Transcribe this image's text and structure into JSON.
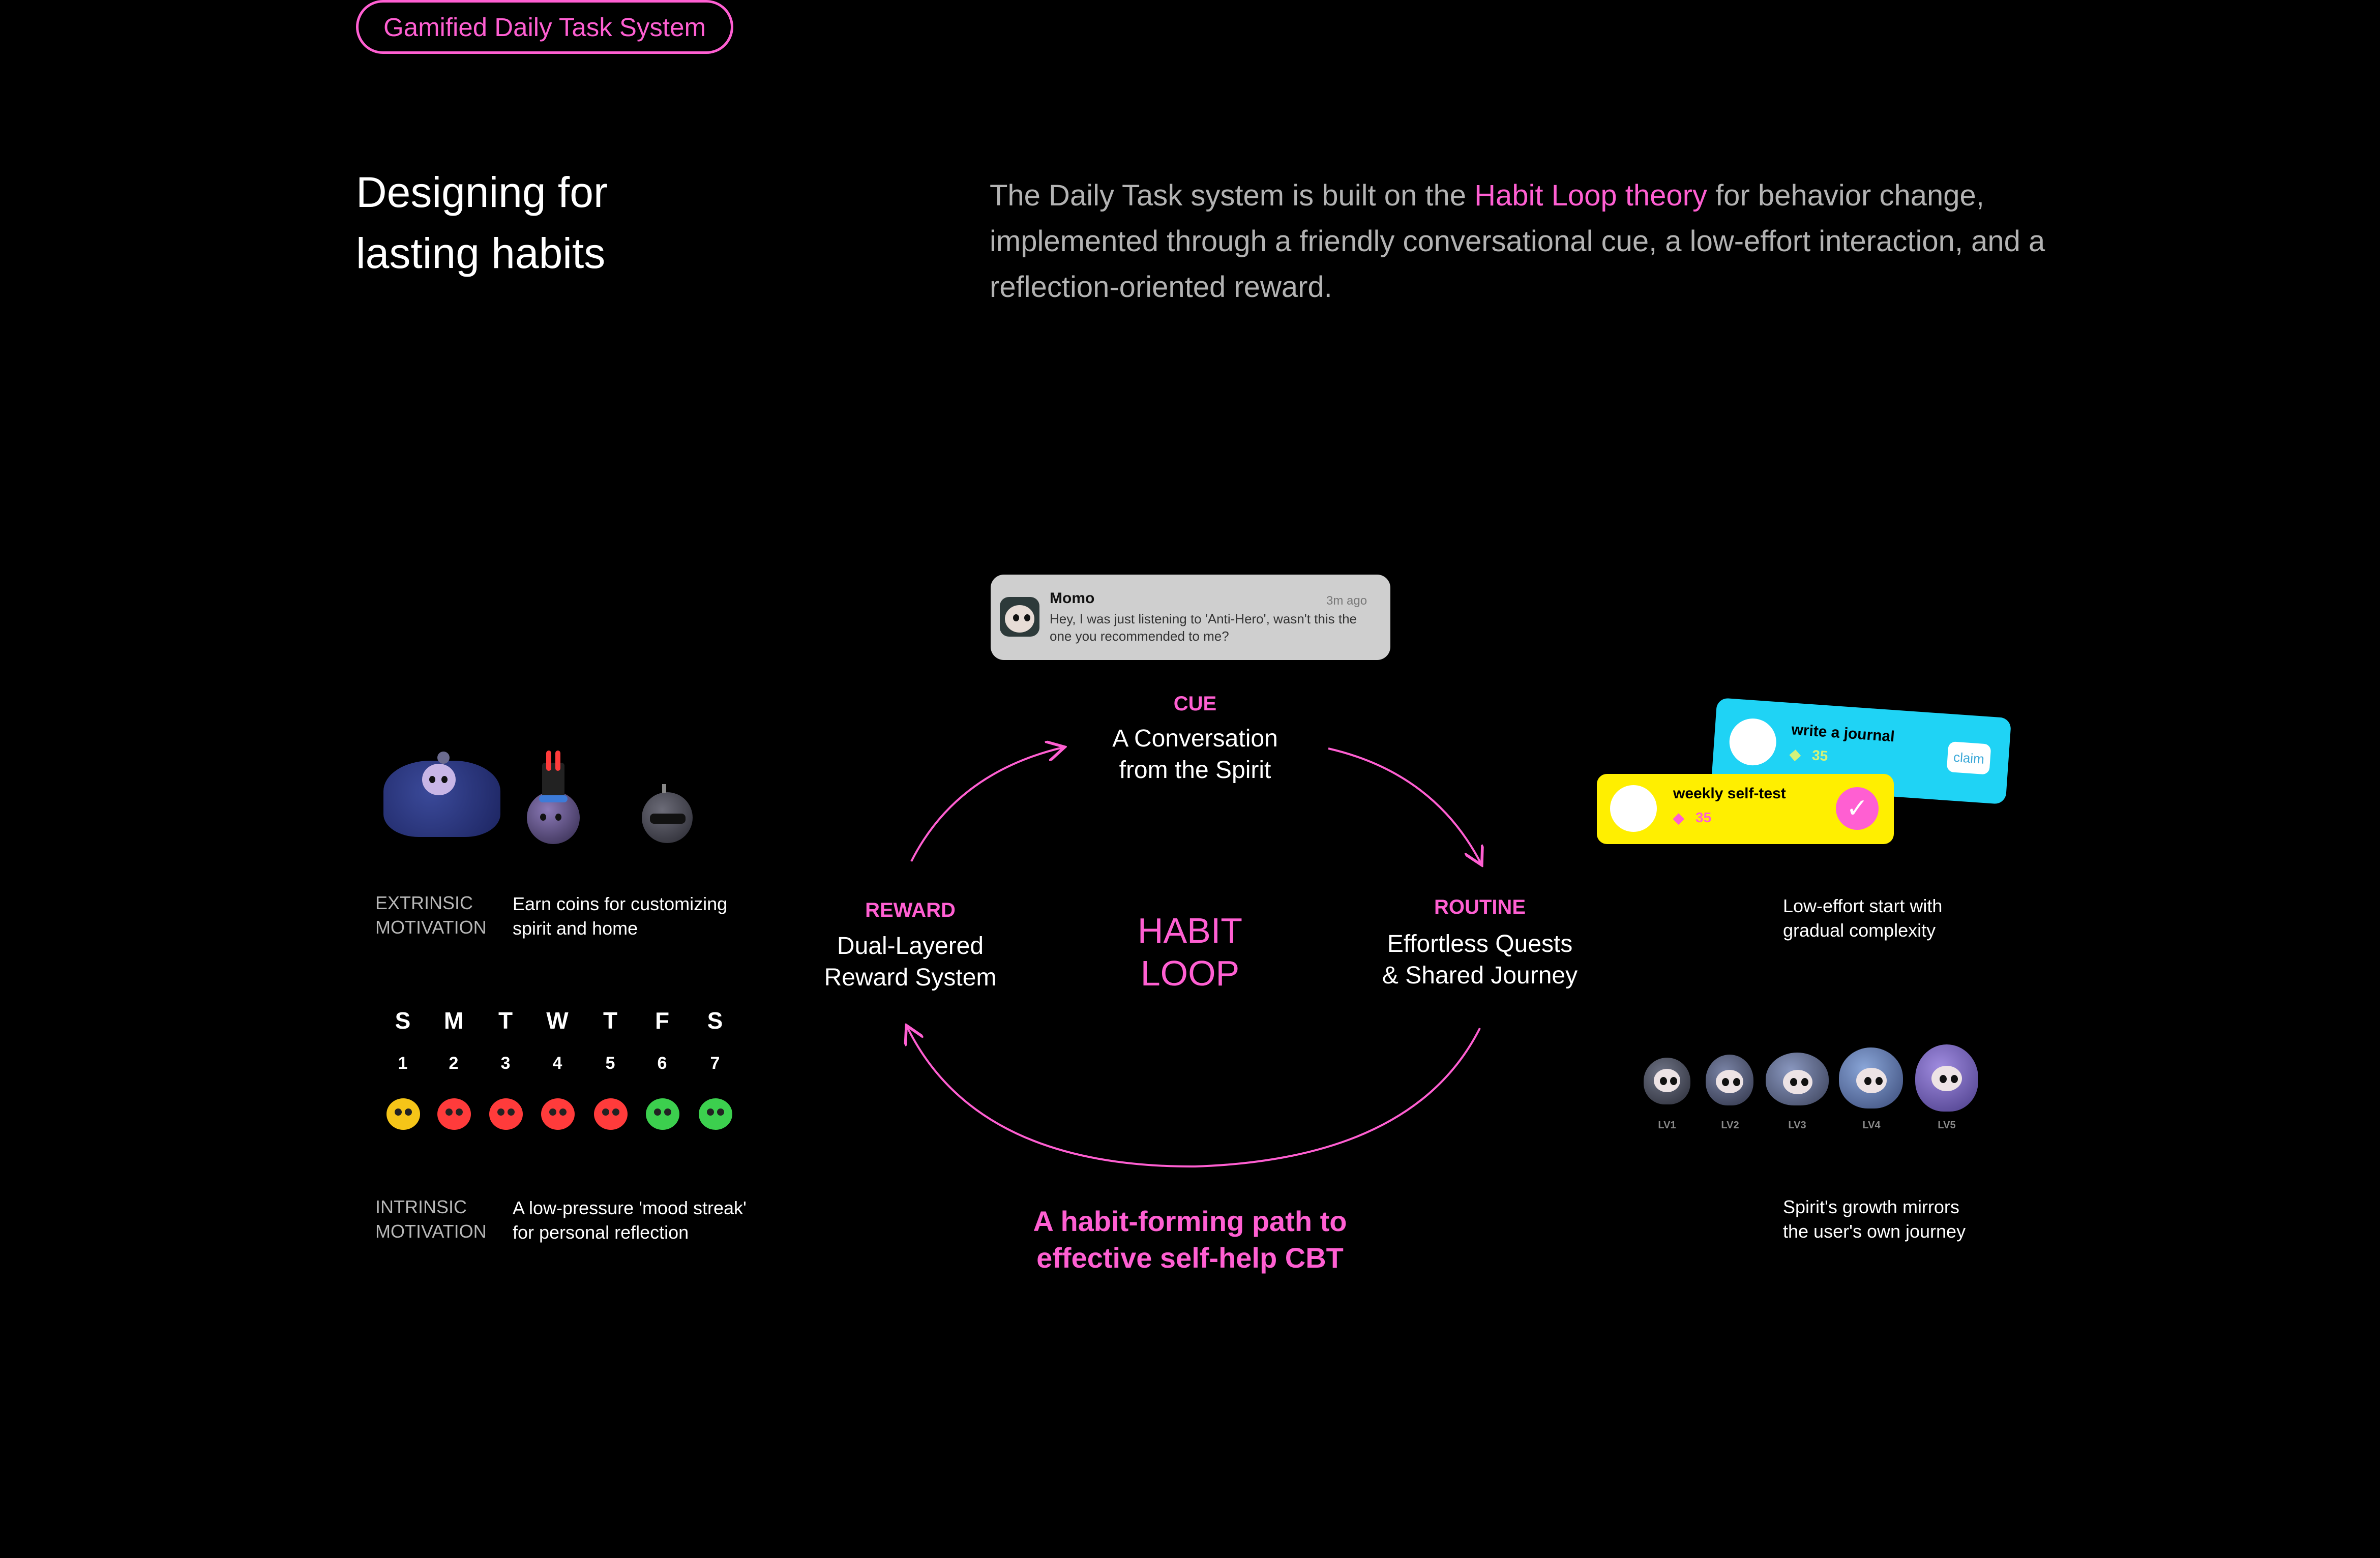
{
  "pill": {
    "label": "Gamified Daily Task System"
  },
  "headline": {
    "line1": "Designing for",
    "line2": "lasting habits"
  },
  "intro": {
    "before": "The Daily Task system is built on the ",
    "highlight": "Habit Loop theory",
    "after": " for behavior change, implemented through a friendly conversational cue, a low-effort interaction, and a reflection-oriented reward."
  },
  "notification": {
    "name": "Momo",
    "time": "3m ago",
    "message": "Hey, I was just listening to 'Anti-Hero', wasn't this the one you recommended to me?"
  },
  "loop": {
    "center_line1": "HABIT",
    "center_line2": "LOOP",
    "cue_label": "CUE",
    "cue_line1": "A Conversation",
    "cue_line2": "from the Spirit",
    "reward_label": "REWARD",
    "reward_line1": "Dual-Layered",
    "reward_line2": "Reward System",
    "routine_label": "ROUTINE",
    "routine_line1": "Effortless Quests",
    "routine_line2": "& Shared Journey",
    "tagline_line1": "A habit-forming path to",
    "tagline_line2": "effective self-help CBT"
  },
  "extrinsic": {
    "label_line1": "EXTRINSIC",
    "label_line2": "MOTIVATION",
    "desc_line1": "Earn coins for customizing",
    "desc_line2": "spirit and home"
  },
  "calendar": {
    "days": [
      "S",
      "M",
      "T",
      "W",
      "T",
      "F",
      "S"
    ],
    "numbers": [
      "1",
      "2",
      "3",
      "4",
      "5",
      "6",
      "7"
    ],
    "moods": [
      "#f5c518",
      "#ff3b3b",
      "#ff3b3b",
      "#ff3b3b",
      "#ff3b3b",
      "#3ccf4e",
      "#3ccf4e"
    ]
  },
  "intrinsic": {
    "label_line1": "INTRINSIC",
    "label_line2": "MOTIVATION",
    "desc_line1": "A low-pressure 'mood streak'",
    "desc_line2": "for personal reflection"
  },
  "tasks": {
    "card1_title": "write a journal",
    "card1_reward": "35",
    "card1_button": "claim",
    "card2_title": "weekly self-test",
    "card2_reward": "35",
    "desc_line1": "Low-effort start with",
    "desc_line2": "gradual complexity"
  },
  "levels": {
    "labels": [
      "LV1",
      "LV2",
      "LV3",
      "LV4",
      "LV5"
    ],
    "desc_line1": "Spirit's growth mirrors",
    "desc_line2": "the user's own journey"
  },
  "colors": {
    "accent": "#ff5fd2",
    "background": "#000000",
    "card_blue": "#1fd3f5",
    "card_yellow": "#ffef00"
  }
}
